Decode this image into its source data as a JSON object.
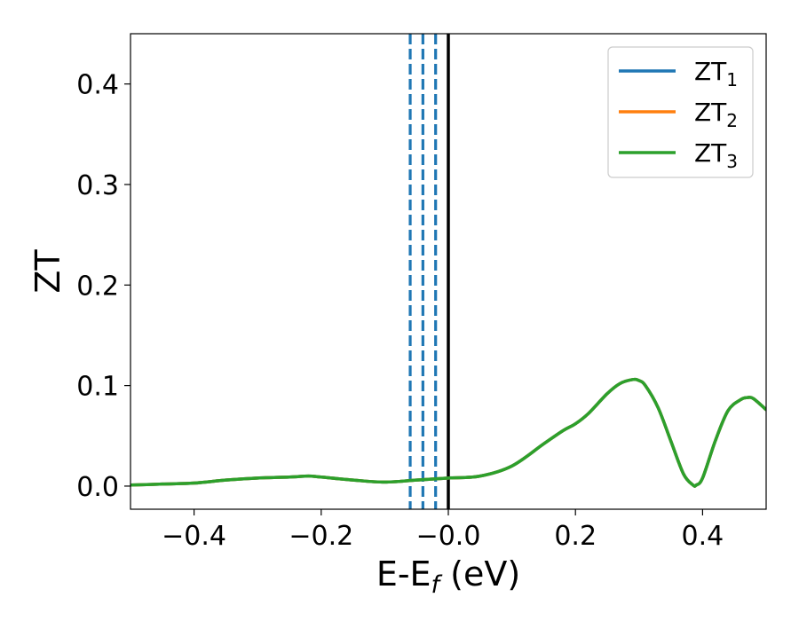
{
  "chart_data": {
    "type": "line",
    "xlabel": "E-E",
    "xlabel_sub": "f",
    "xlabel_unit": " (eV)",
    "ylabel": "ZT",
    "xlim": [
      -0.5,
      0.5
    ],
    "ylim": [
      -0.023,
      0.45
    ],
    "xticks": [
      -0.4,
      -0.2,
      0.0,
      0.2,
      0.4
    ],
    "xtick_labels": [
      "−0.4",
      "−0.2",
      "−0.0",
      "0.2",
      "0.4"
    ],
    "yticks": [
      0.0,
      0.1,
      0.2,
      0.3,
      0.4
    ],
    "ytick_labels": [
      "0.0",
      "0.1",
      "0.2",
      "0.3",
      "0.4"
    ],
    "grid": false,
    "legend_position": "top-right",
    "colors": {
      "ZT1": "#1f77b4",
      "ZT2": "#ff7f0e",
      "ZT3": "#2ca02c",
      "fermi_line": "#000000",
      "dashed_lines": "#1f77b4"
    },
    "legend": [
      {
        "base": "ZT",
        "sub": "1",
        "color": "#1f77b4"
      },
      {
        "base": "ZT",
        "sub": "2",
        "color": "#ff7f0e"
      },
      {
        "base": "ZT",
        "sub": "3",
        "color": "#2ca02c"
      }
    ],
    "vertical_dashed_x": [
      -0.06,
      -0.04,
      -0.02
    ],
    "vertical_solid_x": [
      0.0
    ],
    "x": [
      -0.5,
      -0.45,
      -0.4,
      -0.35,
      -0.3,
      -0.25,
      -0.22,
      -0.2,
      -0.15,
      -0.1,
      -0.05,
      0.0,
      0.05,
      0.1,
      0.15,
      0.18,
      0.2,
      0.22,
      0.25,
      0.27,
      0.29,
      0.3,
      0.31,
      0.33,
      0.35,
      0.37,
      0.385,
      0.39,
      0.4,
      0.42,
      0.44,
      0.46,
      0.47,
      0.48,
      0.5
    ],
    "series": [
      {
        "name": "ZT1",
        "values": [
          0.001,
          0.002,
          0.003,
          0.006,
          0.008,
          0.009,
          0.01,
          0.009,
          0.006,
          0.004,
          0.006,
          0.008,
          0.01,
          0.02,
          0.042,
          0.055,
          0.062,
          0.072,
          0.092,
          0.102,
          0.106,
          0.105,
          0.1,
          0.078,
          0.045,
          0.012,
          0.001,
          0.001,
          0.008,
          0.045,
          0.075,
          0.086,
          0.088,
          0.087,
          0.076
        ]
      },
      {
        "name": "ZT2",
        "values": [
          0.001,
          0.002,
          0.003,
          0.006,
          0.008,
          0.009,
          0.01,
          0.009,
          0.006,
          0.004,
          0.006,
          0.008,
          0.01,
          0.02,
          0.042,
          0.055,
          0.062,
          0.072,
          0.092,
          0.102,
          0.106,
          0.105,
          0.1,
          0.078,
          0.045,
          0.012,
          0.001,
          0.001,
          0.008,
          0.045,
          0.075,
          0.086,
          0.088,
          0.087,
          0.076
        ]
      },
      {
        "name": "ZT3",
        "values": [
          0.001,
          0.002,
          0.003,
          0.006,
          0.008,
          0.009,
          0.01,
          0.009,
          0.006,
          0.004,
          0.006,
          0.008,
          0.01,
          0.02,
          0.042,
          0.055,
          0.062,
          0.072,
          0.092,
          0.102,
          0.106,
          0.105,
          0.1,
          0.078,
          0.045,
          0.012,
          0.001,
          0.001,
          0.008,
          0.045,
          0.075,
          0.086,
          0.088,
          0.087,
          0.076
        ]
      }
    ]
  }
}
